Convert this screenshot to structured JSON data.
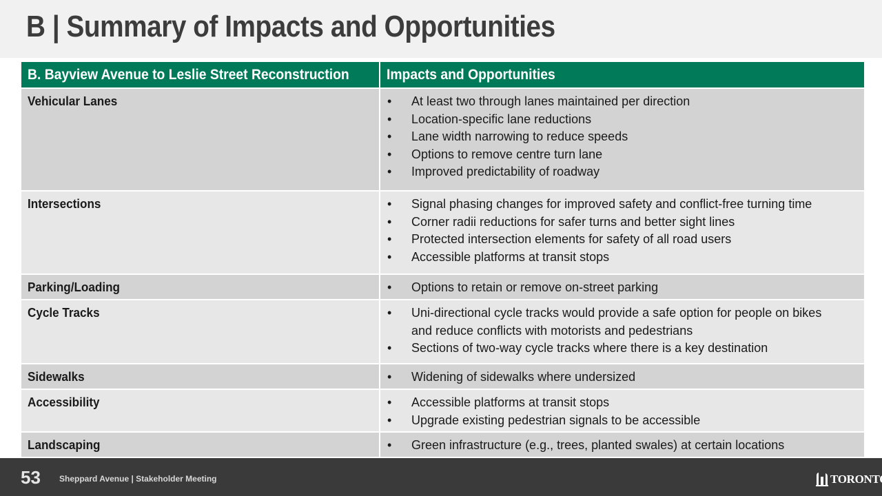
{
  "slide": {
    "title": "B | Summary of Impacts and Opportunities"
  },
  "table": {
    "headers": [
      "B. Bayview Avenue to Leslie Street Reconstruction",
      "Impacts and Opportunities"
    ],
    "rows": [
      {
        "topic": "Vehicular Lanes",
        "items": [
          "At least two through lanes maintained per direction",
          "Location-specific lane reductions",
          "Lane width narrowing to reduce speeds",
          "Options to remove centre turn lane",
          "Improved predictability of roadway"
        ]
      },
      {
        "topic": "Intersections",
        "items": [
          "Signal phasing changes for improved safety and conflict-free turning time",
          "Corner radii reductions for safer turns and better sight lines",
          "Protected intersection elements for safety of all road users",
          "Accessible platforms at transit stops"
        ]
      },
      {
        "topic": "Parking/Loading",
        "items": [
          "Options to retain or remove on-street parking"
        ]
      },
      {
        "topic": "Cycle Tracks",
        "items": [
          "Uni-directional cycle tracks would provide a safe option for people on bikes and reduce conflicts with motorists and pedestrians",
          "Sections of two-way cycle tracks where there is a key destination"
        ]
      },
      {
        "topic": "Sidewalks",
        "items": [
          "Widening of sidewalks where undersized"
        ]
      },
      {
        "topic": "Accessibility",
        "items": [
          "Accessible platforms at transit stops",
          "Upgrade existing pedestrian signals to be accessible"
        ]
      },
      {
        "topic": "Landscaping",
        "items": [
          "Green infrastructure (e.g., trees, planted swales) at certain locations"
        ]
      }
    ]
  },
  "footer": {
    "page_number": "53",
    "text": "Sheppard Avenue | Stakeholder Meeting",
    "logo_text": "TORONTO",
    "logo_icon": "city-hall-icon"
  },
  "colors": {
    "header_green": "#017a5a",
    "row_dark": "#d3d3d3",
    "row_light": "#e7e7e7",
    "footer_bg": "#3a3a3a"
  }
}
